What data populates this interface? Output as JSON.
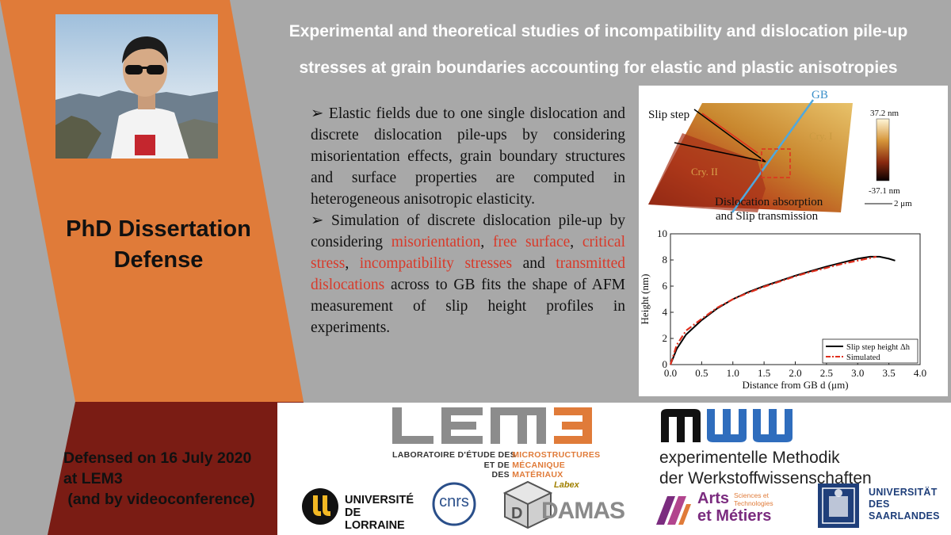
{
  "title": {
    "line1": "Experimental and theoretical studies of incompatibility and dislocation pile-up",
    "line2": "stresses at grain boundaries accounting for elastic and plastic anisotropies"
  },
  "phd_label": {
    "line1": "PhD Dissertation",
    "line2": "Defense"
  },
  "bullets": [
    {
      "marker": "➢",
      "text": "Elastic fields due to one single dislocation and discrete dislocation pile-ups by considering misorientation effects, grain boundary structures and surface properties are computed in heterogeneous anisotropic elasticity."
    },
    {
      "marker": "➢",
      "parts": [
        "Simulation of discrete dislocation pile-up by considering ",
        "misorientation",
        ", ",
        "free surface",
        ", ",
        "critical stress",
        ", ",
        "incompatibility stresses",
        " and ",
        "transmitted dislocations",
        " across to GB fits the shape of AFM measurement of slip height profiles in experiments."
      ]
    }
  ],
  "afm_image": {
    "gb_label": "GB",
    "slip_step_label": "Slip step",
    "cry1_label": "Cry. I",
    "cry2_label": "Cry. II",
    "absorption_label_1": "Dislocation absorption",
    "absorption_label_2": "and Slip transmission",
    "scale_max": "37.2 nm",
    "scale_min": "-37.1 nm",
    "scale_bar": "2 μm"
  },
  "chart_data": {
    "type": "line",
    "xlabel": "Distance from GB d (μm)",
    "ylabel": "Height (nm)",
    "xlim": [
      0,
      4.0
    ],
    "ylim": [
      0,
      10
    ],
    "x_ticks": [
      "0.0",
      "0.5",
      "1.0",
      "1.5",
      "2.0",
      "2.5",
      "3.0",
      "3.5",
      "4.0"
    ],
    "y_ticks": [
      "0",
      "2",
      "4",
      "6",
      "8",
      "10"
    ],
    "legend_position": "bottom-right",
    "series": [
      {
        "name": "Slip step height Δh",
        "color": "#000000",
        "style": "solid",
        "x": [
          0,
          0.1,
          0.25,
          0.5,
          0.75,
          1.0,
          1.25,
          1.5,
          1.75,
          2.0,
          2.25,
          2.5,
          2.75,
          3.0,
          3.2,
          3.35,
          3.5,
          3.6
        ],
        "y": [
          0,
          1.2,
          2.3,
          3.4,
          4.3,
          5.0,
          5.55,
          6.0,
          6.4,
          6.8,
          7.15,
          7.5,
          7.8,
          8.1,
          8.25,
          8.25,
          8.1,
          7.95
        ]
      },
      {
        "name": "Simulated",
        "color": "#e0301e",
        "style": "dashdot",
        "x": [
          0,
          0.1,
          0.25,
          0.5,
          0.75,
          1.0,
          1.25,
          1.5,
          1.75,
          2.0,
          2.25,
          2.5,
          2.75,
          3.0,
          3.2,
          3.3
        ],
        "y": [
          0,
          1.5,
          2.6,
          3.5,
          4.35,
          5.0,
          5.5,
          5.95,
          6.35,
          6.75,
          7.1,
          7.4,
          7.7,
          7.95,
          8.15,
          8.25
        ]
      }
    ]
  },
  "defended": {
    "line1": "Defensed on 16 July 2020",
    "line2": "at LEM3",
    "line3": " (and by videoconference)"
  },
  "logos": {
    "lem3": {
      "wordmark": "LEM3",
      "line1_a": "LABORATOIRE D'ÉTUDE DES",
      "line1_b": "MICROSTRUCTURES",
      "line2_a": "ET DE",
      "line2_b": "MÉCANIQUE",
      "line3_a": "DES",
      "line3_b": "MATÉRIAUX"
    },
    "mww": {
      "wordmark": "mww",
      "line1": "experimentelle Methodik",
      "line2": "der Werkstoffwissenschaften"
    },
    "lorraine": {
      "line1": "UNIVERSITÉ",
      "line2": "DE LORRAINE"
    },
    "cnrs": {
      "text": "cnrs"
    },
    "damas": {
      "small": "Labex",
      "text": "DAMAS"
    },
    "arts": {
      "line1": "Arts",
      "line2": "et Métiers",
      "small1": "Sciences et",
      "small2": "Technologies"
    },
    "saarland": {
      "line1": "UNIVERSITÄT",
      "line2": "DES",
      "line3": "SAARLANDES"
    }
  },
  "colors": {
    "background": "#a8a8a8",
    "orange_panel": "#e07b39",
    "dark_red_panel": "#7a1c14",
    "highlight_red": "#d83a2a",
    "lem3_orange": "#e07b39",
    "mww_blue": "#2f6dbd",
    "arts_purple": "#7b2c7f"
  }
}
